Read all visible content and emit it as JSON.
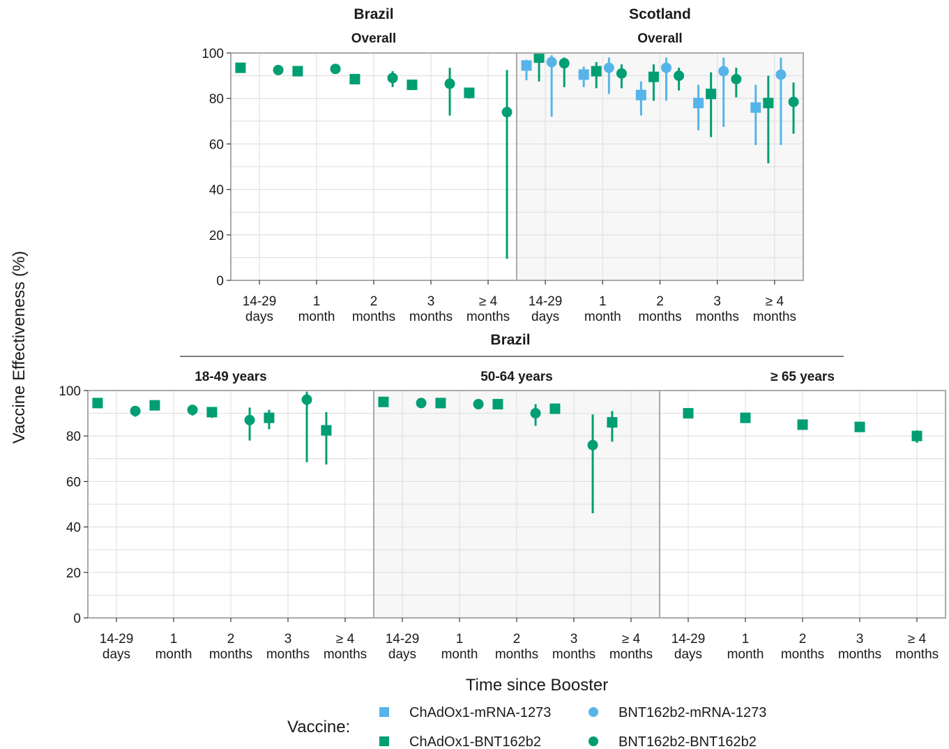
{
  "figure": {
    "ylabel": "Vaccine Effectiveness (%)",
    "xlabel": "Time since Booster",
    "bottom_group_title": "Brazil"
  },
  "colors": {
    "ChAdOx1-mRNA-1273": "#56b4e9",
    "ChAdOx1-BNT162b2": "#009e73",
    "BNT162b2-mRNA-1273": "#56b4e9",
    "BNT162b2-BNT162b2": "#009e73"
  },
  "legend": {
    "title": "Vaccine:",
    "items": [
      {
        "label": "ChAdOx1-mRNA-1273",
        "shape": "square",
        "color": "#56b4e9"
      },
      {
        "label": "BNT162b2-mRNA-1273",
        "shape": "circle",
        "color": "#56b4e9"
      },
      {
        "label": "ChAdOx1-BNT162b2",
        "shape": "square",
        "color": "#009e73"
      },
      {
        "label": "BNT162b2-BNT162b2",
        "shape": "circle",
        "color": "#009e73"
      }
    ]
  },
  "chart_data": [
    {
      "type": "scatter",
      "title": "Brazil",
      "subtitle": "Overall",
      "categories": [
        "14-29\ndays",
        "1\nmonth",
        "2\nmonths",
        "3\nmonths",
        "≥ 4\nmonths"
      ],
      "ylim": [
        0,
        100
      ],
      "yticks": [
        0,
        20,
        40,
        60,
        80,
        100
      ],
      "background": "white",
      "series": [
        {
          "name": "ChAdOx1-BNT162b2",
          "shape": "square",
          "values": [
            93.5,
            92,
            88.5,
            86,
            82.5
          ],
          "lower": [
            93,
            91.5,
            87.5,
            85,
            80
          ],
          "upper": [
            94,
            92.5,
            89.5,
            87,
            84
          ]
        },
        {
          "name": "BNT162b2-BNT162b2",
          "shape": "circle",
          "values": [
            92.5,
            93,
            89,
            86.5,
            74
          ],
          "lower": [
            92,
            92.5,
            85,
            72.5,
            9.5
          ],
          "upper": [
            93,
            93.5,
            92,
            93.5,
            92.5
          ]
        }
      ]
    },
    {
      "type": "scatter",
      "title": "Scotland",
      "subtitle": "Overall",
      "categories": [
        "14-29\ndays",
        "1\nmonth",
        "2\nmonths",
        "3\nmonths",
        "≥ 4\nmonths"
      ],
      "ylim": [
        0,
        100
      ],
      "yticks": [
        0,
        20,
        40,
        60,
        80,
        100
      ],
      "background": "grey",
      "series": [
        {
          "name": "ChAdOx1-mRNA-1273",
          "shape": "square",
          "values": [
            94.5,
            90.5,
            81.5,
            78,
            76
          ],
          "lower": [
            88,
            85,
            72.5,
            66,
            59.5
          ],
          "upper": [
            97,
            94,
            87.5,
            86,
            86
          ]
        },
        {
          "name": "ChAdOx1-BNT162b2",
          "shape": "square",
          "values": [
            98,
            92,
            89.5,
            82,
            78
          ],
          "lower": [
            87.5,
            84.5,
            79,
            63,
            51.5
          ],
          "upper": [
            99.5,
            96,
            95,
            91.5,
            90
          ]
        },
        {
          "name": "BNT162b2-mRNA-1273",
          "shape": "circle",
          "values": [
            96,
            93.5,
            93.5,
            92,
            90.5
          ],
          "lower": [
            72,
            82,
            79,
            67.5,
            59.5
          ],
          "upper": [
            99,
            98,
            98,
            98,
            98
          ]
        },
        {
          "name": "BNT162b2-BNT162b2",
          "shape": "circle",
          "values": [
            95.5,
            91,
            90,
            88.5,
            78.5
          ],
          "lower": [
            85,
            84.5,
            83.5,
            80.5,
            64.5
          ],
          "upper": [
            98,
            95,
            93.5,
            93.5,
            87
          ]
        }
      ]
    },
    {
      "type": "scatter",
      "title": "18-49 years",
      "categories": [
        "14-29\ndays",
        "1\nmonth",
        "2\nmonths",
        "3\nmonths",
        "≥ 4\nmonths"
      ],
      "ylim": [
        0,
        100
      ],
      "yticks": [
        0,
        20,
        40,
        60,
        80,
        100
      ],
      "background": "white",
      "series": [
        {
          "name": "ChAdOx1-BNT162b2",
          "shape": "square",
          "values": [
            94.5,
            93.5,
            90.5,
            88,
            82.5
          ],
          "lower": [
            93.5,
            92.5,
            88,
            83,
            67.5
          ],
          "upper": [
            95.5,
            94.5,
            92.5,
            91.5,
            90.5
          ]
        },
        {
          "name": "BNT162b2-BNT162b2",
          "shape": "circle",
          "values": [
            91,
            91.5,
            87,
            96,
            null
          ],
          "lower": [
            88.5,
            89,
            78,
            68.5,
            null
          ],
          "upper": [
            93,
            93.5,
            92.5,
            99.5,
            null
          ]
        }
      ]
    },
    {
      "type": "scatter",
      "title": "50-64 years",
      "categories": [
        "14-29\ndays",
        "1\nmonth",
        "2\nmonths",
        "3\nmonths",
        "≥ 4\nmonths"
      ],
      "ylim": [
        0,
        100
      ],
      "yticks": [
        0,
        20,
        40,
        60,
        80,
        100
      ],
      "background": "grey",
      "series": [
        {
          "name": "ChAdOx1-BNT162b2",
          "shape": "square",
          "values": [
            95,
            94.5,
            94,
            92,
            86
          ],
          "lower": [
            94.5,
            94,
            93,
            91,
            77.5
          ],
          "upper": [
            95.5,
            95,
            95,
            93,
            91
          ]
        },
        {
          "name": "BNT162b2-BNT162b2",
          "shape": "circle",
          "values": [
            94.5,
            94,
            90,
            76,
            null
          ],
          "lower": [
            94,
            93.5,
            84.5,
            46,
            null
          ],
          "upper": [
            95,
            94.5,
            94,
            89.5,
            null
          ]
        }
      ]
    },
    {
      "type": "scatter",
      "title": "≥ 65 years",
      "categories": [
        "14-29\ndays",
        "1\nmonth",
        "2\nmonths",
        "3\nmonths",
        "≥ 4\nmonths"
      ],
      "ylim": [
        0,
        100
      ],
      "yticks": [
        0,
        20,
        40,
        60,
        80,
        100
      ],
      "background": "white",
      "series": [
        {
          "name": "ChAdOx1-BNT162b2",
          "shape": "square",
          "values": [
            90,
            88,
            85,
            84,
            80
          ],
          "lower": [
            89.5,
            87.5,
            84.5,
            83.5,
            77
          ],
          "upper": [
            90.5,
            88.5,
            85.5,
            84.5,
            82.5
          ]
        }
      ]
    }
  ]
}
